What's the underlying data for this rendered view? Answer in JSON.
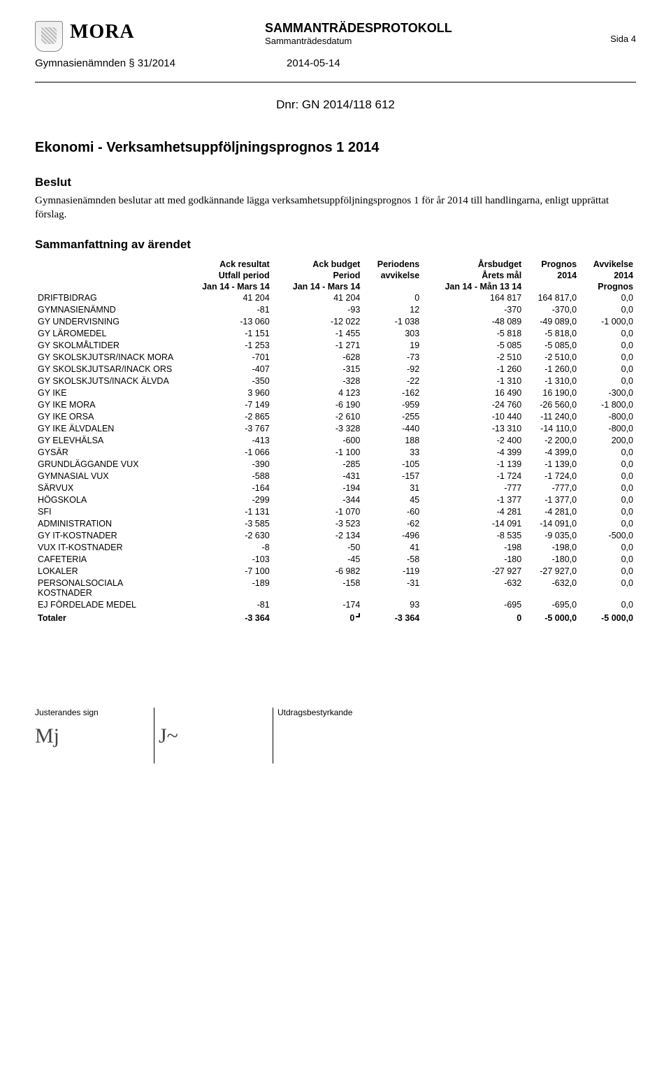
{
  "header": {
    "org": "MORA",
    "doc_type": "SAMMANTRÄDESPROTOKOLL",
    "doc_sub": "Sammanträdesdatum",
    "page_label": "Sida 4",
    "committee": "Gymnasienämnden § 31/2014",
    "date": "2014-05-14"
  },
  "dnr": "Dnr: GN 2014/118 612",
  "title": "Ekonomi - Verksamhetsuppföljningsprognos 1 2014",
  "beslut_h": "Beslut",
  "beslut_text": "Gymnasienämnden beslutar att med godkännande lägga verksamhetsuppföljningsprognos 1 för år 2014 till handlingarna, enligt upprättat förslag.",
  "summary_h": "Sammanfattning av ärendet",
  "cols": {
    "c1a": "Ack resultat",
    "c1b": "Utfall period",
    "c1c": "Jan 14 - Mars 14",
    "c2a": "Ack budget",
    "c2b": "Period",
    "c2c": "Jan 14 - Mars 14",
    "c3a": "Periodens",
    "c3b": "avvikelse",
    "c4a": "Årsbudget",
    "c4b": "Årets mål",
    "c4c": "Jan 14 - Mån 13 14",
    "c5a": "Prognos",
    "c5b": "2014",
    "c6a": "Avvikelse",
    "c6b": "2014",
    "c6c": "Prognos"
  },
  "rows": [
    {
      "label": "DRIFTBIDRAG",
      "v": [
        "41 204",
        "41 204",
        "0",
        "164 817",
        "164 817,0",
        "0,0"
      ]
    },
    {
      "label": "GYMNASIENÄMND",
      "v": [
        "-81",
        "-93",
        "12",
        "-370",
        "-370,0",
        "0,0"
      ]
    },
    {
      "label": "GY UNDERVISNING",
      "v": [
        "-13 060",
        "-12 022",
        "-1 038",
        "-48 089",
        "-49 089,0",
        "-1 000,0"
      ]
    },
    {
      "label": "GY LÄROMEDEL",
      "v": [
        "-1 151",
        "-1 455",
        "303",
        "-5 818",
        "-5 818,0",
        "0,0"
      ]
    },
    {
      "label": "GY SKOLMÅLTIDER",
      "v": [
        "-1 253",
        "-1 271",
        "19",
        "-5 085",
        "-5 085,0",
        "0,0"
      ]
    },
    {
      "label": "GY SKOLSKJUTSR/INACK MORA",
      "v": [
        "-701",
        "-628",
        "-73",
        "-2 510",
        "-2 510,0",
        "0,0"
      ]
    },
    {
      "label": "GY SKOLSKJUTSAR/INACK ORS",
      "v": [
        "-407",
        "-315",
        "-92",
        "-1 260",
        "-1 260,0",
        "0,0"
      ]
    },
    {
      "label": "GY SKOLSKJUTS/INACK ÄLVDA",
      "v": [
        "-350",
        "-328",
        "-22",
        "-1 310",
        "-1 310,0",
        "0,0"
      ]
    },
    {
      "label": "GY IKE",
      "v": [
        "3 960",
        "4 123",
        "-162",
        "16 490",
        "16 190,0",
        "-300,0"
      ]
    },
    {
      "label": "GY IKE MORA",
      "v": [
        "-7 149",
        "-6 190",
        "-959",
        "-24 760",
        "-26 560,0",
        "-1 800,0"
      ]
    },
    {
      "label": "GY IKE ORSA",
      "v": [
        "-2 865",
        "-2 610",
        "-255",
        "-10 440",
        "-11 240,0",
        "-800,0"
      ]
    },
    {
      "label": "GY IKE ÄLVDALEN",
      "v": [
        "-3 767",
        "-3 328",
        "-440",
        "-13 310",
        "-14 110,0",
        "-800,0"
      ]
    },
    {
      "label": "GY ELEVHÄLSA",
      "v": [
        "-413",
        "-600",
        "188",
        "-2 400",
        "-2 200,0",
        "200,0"
      ]
    },
    {
      "label": "GYSÄR",
      "v": [
        "-1 066",
        "-1 100",
        "33",
        "-4 399",
        "-4 399,0",
        "0,0"
      ]
    },
    {
      "label": "GRUNDLÄGGANDE VUX",
      "v": [
        "-390",
        "-285",
        "-105",
        "-1 139",
        "-1 139,0",
        "0,0"
      ]
    },
    {
      "label": "GYMNASIAL VUX",
      "v": [
        "-588",
        "-431",
        "-157",
        "-1 724",
        "-1 724,0",
        "0,0"
      ]
    },
    {
      "label": "SÄRVUX",
      "v": [
        "-164",
        "-194",
        "31",
        "-777",
        "-777,0",
        "0,0"
      ]
    },
    {
      "label": "HÖGSKOLA",
      "v": [
        "-299",
        "-344",
        "45",
        "-1 377",
        "-1 377,0",
        "0,0"
      ]
    },
    {
      "label": "SFI",
      "v": [
        "-1 131",
        "-1 070",
        "-60",
        "-4 281",
        "-4 281,0",
        "0,0"
      ]
    },
    {
      "label": "ADMINISTRATION",
      "v": [
        "-3 585",
        "-3 523",
        "-62",
        "-14 091",
        "-14 091,0",
        "0,0"
      ]
    },
    {
      "label": "GY IT-KOSTNADER",
      "v": [
        "-2 630",
        "-2 134",
        "-496",
        "-8 535",
        "-9 035,0",
        "-500,0"
      ]
    },
    {
      "label": "VUX IT-KOSTNADER",
      "v": [
        "-8",
        "-50",
        "41",
        "-198",
        "-198,0",
        "0,0"
      ]
    },
    {
      "label": "CAFETERIA",
      "v": [
        "-103",
        "-45",
        "-58",
        "-180",
        "-180,0",
        "0,0"
      ]
    },
    {
      "label": "LOKALER",
      "v": [
        "-7 100",
        "-6 982",
        "-119",
        "-27 927",
        "-27 927,0",
        "0,0"
      ]
    },
    {
      "label": "PERSONALSOCIALA KOSTNADER",
      "v": [
        "-189",
        "-158",
        "-31",
        "-632",
        "-632,0",
        "0,0"
      ]
    },
    {
      "label": "EJ FÖRDELADE MEDEL",
      "v": [
        "-81",
        "-174",
        "93",
        "-695",
        "-695,0",
        "0,0"
      ]
    }
  ],
  "total": {
    "label": "Totaler",
    "v": [
      "-3 364",
      "0",
      "-3 364",
      "0",
      "-5 000,0",
      "-5 000,0"
    ]
  },
  "footer": {
    "left": "Justerandes sign",
    "right": "Utdragsbestyrkande"
  }
}
